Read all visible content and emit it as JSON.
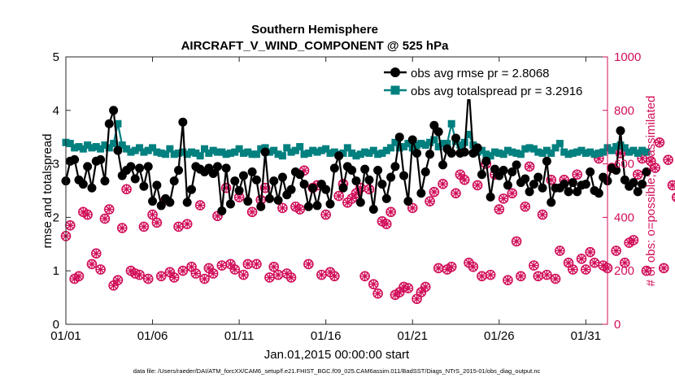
{
  "chart_data": {
    "type": "scatter",
    "title": "Southern Hemisphere",
    "subtitle": "AIRCRAFT_V_WIND_COMPONENT @ 525 hPa",
    "xlabel": "Jan.01,2015 00:00:00 start",
    "ylabel": "rmse and totalspread",
    "ylabel_right": "# of obs: o=possible; ×=assimilated",
    "footnote": "data file: /Users/raeder/DAI/ATM_forcXX/CAM6_setup/f.e21.FHIST_BGC.f09_025.CAM6assim.011/BadSST/Diags_NTrS_2015-01/obs_diag_output.nc",
    "xlim": [
      1,
      32.25
    ],
    "ylim": [
      0,
      5
    ],
    "ylim_right": [
      0,
      1000
    ],
    "x_ticks": [
      1,
      6,
      11,
      16,
      21,
      26,
      31
    ],
    "x_tick_labels": [
      "01/01",
      "01/06",
      "01/11",
      "01/16",
      "01/21",
      "01/26",
      "01/31"
    ],
    "y_ticks": [
      0,
      1,
      2,
      3,
      4,
      5
    ],
    "y_tick_labels": [
      "0",
      "1",
      "2",
      "3",
      "4",
      "5"
    ],
    "y_ticks_right": [
      0,
      200,
      400,
      600,
      800,
      1000
    ],
    "y_tick_labels_right": [
      "0",
      "200",
      "400",
      "600",
      "800",
      "1000"
    ],
    "grid": false,
    "legend_position": "top-right",
    "colors": {
      "rmse": "#000000",
      "spread": "#00807f",
      "obs": "#d10f5a"
    },
    "series": [
      {
        "name": "obs avg rmse pr = 2.8068",
        "axis": "left",
        "step": 0.25,
        "x_start": 1.0,
        "values": [
          2.68,
          3.05,
          3.08,
          2.7,
          2.62,
          2.95,
          2.55,
          3.05,
          3.08,
          2.68,
          3.75,
          4.0,
          3.25,
          2.78,
          2.88,
          2.95,
          2.72,
          2.92,
          2.58,
          2.95,
          2.3,
          2.6,
          2.22,
          2.35,
          2.28,
          2.68,
          2.88,
          3.78,
          2.28,
          2.52,
          2.95,
          2.9,
          2.85,
          2.92,
          2.82,
          2.95,
          2.12,
          2.92,
          2.25,
          2.68,
          2.5,
          2.78,
          2.3,
          2.85,
          2.7,
          2.2,
          3.22,
          2.35,
          2.68,
          2.32,
          2.75,
          2.42,
          2.52,
          2.85,
          2.8,
          2.62,
          2.2,
          2.55,
          2.22,
          2.62,
          2.52,
          2.25,
          2.92,
          3.15,
          2.55,
          2.95,
          2.88,
          2.68,
          2.28,
          2.9,
          2.7,
          2.15,
          2.88,
          2.62,
          2.35,
          2.75,
          2.95,
          3.5,
          2.78,
          2.3,
          3.45,
          3.2,
          2.45,
          2.85,
          3.18,
          3.72,
          3.6,
          2.98,
          3.28,
          3.2,
          3.48,
          3.2,
          3.22,
          4.42,
          3.2,
          3.3,
          2.8,
          3.05,
          2.38,
          2.9,
          2.78,
          2.88,
          2.6,
          2.85,
          2.98,
          2.65,
          2.72,
          2.48,
          2.62,
          2.75,
          2.55,
          3.05,
          2.28,
          2.55,
          2.55,
          2.62,
          2.48,
          2.65,
          2.48,
          2.6,
          2.62,
          2.85,
          2.5,
          2.45,
          2.75,
          2.68,
          2.92,
          2.88,
          3.62,
          2.7,
          2.58,
          2.65,
          2.48,
          2.62,
          2.85
        ]
      },
      {
        "name": "obs avg totalspread pr = 3.2916",
        "axis": "left",
        "step": 0.25,
        "x_start": 1.0,
        "values": [
          3.4,
          3.38,
          3.3,
          3.32,
          3.28,
          3.35,
          3.3,
          3.32,
          3.28,
          3.35,
          3.3,
          3.38,
          3.75,
          3.35,
          3.28,
          3.22,
          3.25,
          3.3,
          3.22,
          3.25,
          3.3,
          3.22,
          3.2,
          3.18,
          3.28,
          3.18,
          3.2,
          3.22,
          3.18,
          3.22,
          3.2,
          3.15,
          3.28,
          3.2,
          3.25,
          3.22,
          3.22,
          3.18,
          3.2,
          3.22,
          3.28,
          3.2,
          3.22,
          3.18,
          3.18,
          3.28,
          3.3,
          3.22,
          3.25,
          3.18,
          3.15,
          3.3,
          3.22,
          3.25,
          3.32,
          3.18,
          3.2,
          3.25,
          3.22,
          3.25,
          3.28,
          3.2,
          3.22,
          3.18,
          3.2,
          3.3,
          3.2,
          3.15,
          3.18,
          3.22,
          3.2,
          3.25,
          3.18,
          3.2,
          3.25,
          3.3,
          3.4,
          3.3,
          3.32,
          3.38,
          3.3,
          3.35,
          3.38,
          3.35,
          3.4,
          3.45,
          3.32,
          3.38,
          3.38,
          3.75,
          3.42,
          3.35,
          3.4,
          3.55,
          3.35,
          3.22,
          3.25,
          3.18,
          3.15,
          3.22,
          3.2,
          3.18,
          3.25,
          3.22,
          3.2,
          3.18,
          3.28,
          3.3,
          3.28,
          3.22,
          3.2,
          3.25,
          3.2,
          3.3,
          3.38,
          3.22,
          3.18,
          3.2,
          3.22,
          3.25,
          3.2,
          3.22,
          3.18,
          3.2,
          3.22,
          3.3,
          3.25,
          3.32,
          3.35,
          3.3,
          3.22,
          3.25,
          3.2,
          3.25,
          3.22
        ]
      },
      {
        "name": "possible",
        "axis": "right",
        "marker": "o",
        "step": 0.25,
        "x_start": 1.0,
        "values": [
          330,
          370,
          170,
          180,
          420,
          410,
          225,
          265,
          205,
          395,
          430,
          145,
          165,
          360,
          505,
          200,
          190,
          185,
          365,
          170,
          410,
          380,
          180,
          465,
          195,
          175,
          365,
          200,
          375,
          215,
          190,
          445,
          170,
          210,
          190,
          405,
          220,
          510,
          225,
          205,
          475,
          185,
          225,
          420,
          225,
          465,
          510,
          175,
          215,
          185,
          435,
          190,
          175,
          440,
          430,
          575,
          225,
          510,
          520,
          185,
          410,
          195,
          180,
          480,
          525,
          455,
          470,
          490,
          510,
          180,
          505,
          150,
          115,
          385,
          375,
          420,
          110,
          120,
          140,
          135,
          435,
          95,
          120,
          140,
          460,
          495,
          210,
          525,
          205,
          215,
          490,
          560,
          540,
          230,
          215,
          520,
          180,
          600,
          185,
          560,
          430,
          470,
          165,
          490,
          310,
          180,
          440,
          590,
          220,
          180,
          410,
          185,
          540,
          170,
          275,
          540,
          230,
          205,
          560,
          245,
          205,
          270,
          230,
          620,
          220,
          210,
          585,
          275,
          640,
          230,
          305,
          315,
          560,
          620,
          200,
          610,
          585,
          680,
          210,
          615,
          520,
          475,
          475,
          195,
          180,
          0
        ],
        "x_overrides": {
          "151": 32.0
        }
      },
      {
        "name": "assimilated",
        "axis": "right",
        "marker": "x",
        "x_from": "possible"
      }
    ]
  }
}
